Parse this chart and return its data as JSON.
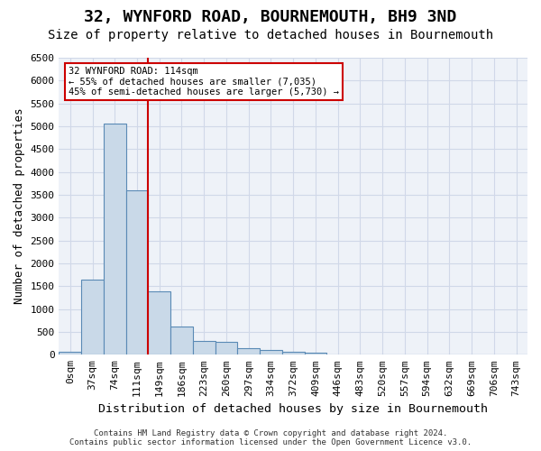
{
  "title": "32, WYNFORD ROAD, BOURNEMOUTH, BH9 3ND",
  "subtitle": "Size of property relative to detached houses in Bournemouth",
  "xlabel": "Distribution of detached houses by size in Bournemouth",
  "ylabel": "Number of detached properties",
  "footer_line1": "Contains HM Land Registry data © Crown copyright and database right 2024.",
  "footer_line2": "Contains public sector information licensed under the Open Government Licence v3.0.",
  "bin_labels": [
    "0sqm",
    "37sqm",
    "74sqm",
    "111sqm",
    "149sqm",
    "186sqm",
    "223sqm",
    "260sqm",
    "297sqm",
    "334sqm",
    "372sqm",
    "409sqm",
    "446sqm",
    "483sqm",
    "520sqm",
    "557sqm",
    "594sqm",
    "632sqm",
    "669sqm",
    "706sqm",
    "743sqm"
  ],
  "bar_values": [
    75,
    1650,
    5060,
    3600,
    1390,
    610,
    300,
    285,
    140,
    110,
    75,
    40,
    10,
    2,
    1,
    0,
    0,
    0,
    0,
    0,
    0
  ],
  "bar_color": "#c9d9e8",
  "bar_edge_color": "#5a8ab5",
  "property_line_x": 3,
  "property_line_label": "32 WYNFORD ROAD: 114sqm",
  "annotation_line1": "← 55% of detached houses are smaller (7,035)",
  "annotation_line2": "45% of semi-detached houses are larger (5,730) →",
  "red_line_color": "#cc0000",
  "annotation_box_color": "#ffffff",
  "annotation_box_edgecolor": "#cc0000",
  "ylim": [
    0,
    6500
  ],
  "yticks": [
    0,
    500,
    1000,
    1500,
    2000,
    2500,
    3000,
    3500,
    4000,
    4500,
    5000,
    5500,
    6000,
    6500
  ],
  "grid_color": "#d0d8e8",
  "background_color": "#eef2f8",
  "title_fontsize": 13,
  "subtitle_fontsize": 10,
  "axis_label_fontsize": 9,
  "tick_fontsize": 8
}
